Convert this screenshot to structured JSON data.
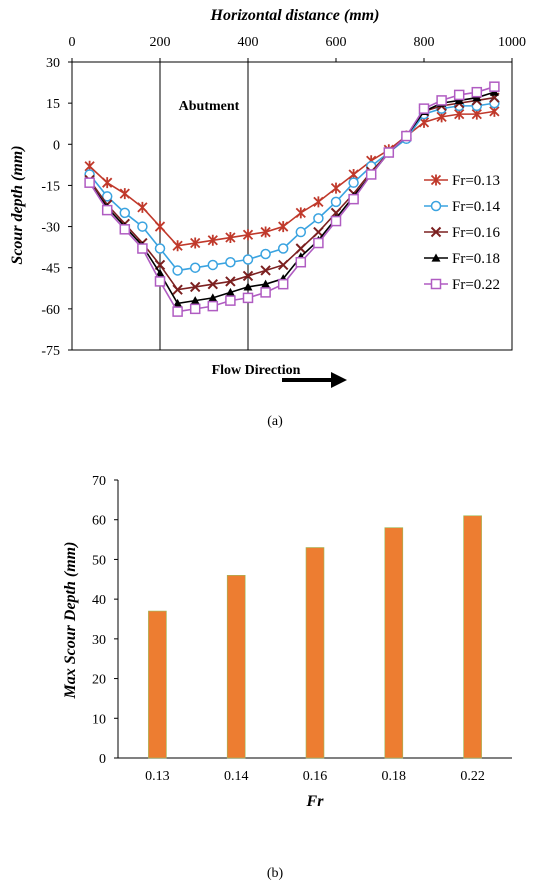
{
  "chart_data": [
    {
      "type": "line",
      "xlabel": "Horizontal distance (mm)",
      "ylabel": "Scour depth (mm)",
      "xlim": [
        0,
        1000
      ],
      "ylim": [
        -75,
        30
      ],
      "xticks": [
        "0",
        "200",
        "400",
        "600",
        "800",
        "1000"
      ],
      "yticks": [
        "30",
        "15",
        "0",
        "-15",
        "-30",
        "-45",
        "-60",
        "-75"
      ],
      "x_axis_position": "top",
      "grid": false,
      "legend_position": "right",
      "annotations": {
        "abutment_label": "Abutment",
        "abutment_x": [
          200,
          400
        ],
        "flow_label": "Flow Direction"
      },
      "x": [
        40,
        80,
        120,
        160,
        200,
        240,
        280,
        320,
        360,
        400,
        440,
        480,
        520,
        560,
        600,
        640,
        680,
        720,
        760,
        800,
        840,
        880,
        920,
        960
      ],
      "series": [
        {
          "name": "Fr=0.13",
          "marker": "star",
          "color": "#c0392b",
          "values": [
            -8,
            -14,
            -18,
            -23,
            -30,
            -37,
            -36,
            -35,
            -34,
            -33,
            -32,
            -30,
            -25,
            -21,
            -16,
            -11,
            -6,
            -2,
            3,
            8,
            10,
            11,
            11,
            12
          ]
        },
        {
          "name": "Fr=0.14",
          "marker": "circle",
          "color": "#3aa3e0",
          "values": [
            -11,
            -19,
            -25,
            -30,
            -38,
            -46,
            -45,
            -44,
            -43,
            -42,
            -40,
            -38,
            -32,
            -27,
            -21,
            -14,
            -8,
            -3,
            2,
            11,
            13,
            14,
            14,
            15
          ]
        },
        {
          "name": "Fr=0.16",
          "marker": "x",
          "color": "#7b2020",
          "values": [
            -13,
            -22,
            -29,
            -36,
            -44,
            -53,
            -52,
            -51,
            -50,
            -48,
            -46,
            -44,
            -38,
            -32,
            -25,
            -18,
            -10,
            -3,
            3,
            12,
            14,
            15,
            16,
            17
          ]
        },
        {
          "name": "Fr=0.18",
          "marker": "triangle",
          "color": "#000000",
          "values": [
            -14,
            -23,
            -30,
            -37,
            -47,
            -58,
            -57,
            -56,
            -54,
            -52,
            -51,
            -49,
            -41,
            -35,
            -27,
            -19,
            -11,
            -3,
            3,
            12,
            15,
            16,
            17,
            19
          ]
        },
        {
          "name": "Fr=0.22",
          "marker": "square",
          "color": "#b05cc2",
          "values": [
            -14,
            -24,
            -31,
            -38,
            -50,
            -61,
            -60,
            -59,
            -57,
            -56,
            -54,
            -51,
            -43,
            -36,
            -28,
            -20,
            -11,
            -3,
            3,
            13,
            16,
            18,
            19,
            21
          ]
        }
      ]
    },
    {
      "type": "bar",
      "xlabel": "Fr",
      "ylabel": "Max Scour Depth (mm)",
      "ylim": [
        0,
        70
      ],
      "yticks": [
        "0",
        "10",
        "20",
        "30",
        "40",
        "50",
        "60",
        "70"
      ],
      "categories": [
        "0.13",
        "0.14",
        "0.16",
        "0.18",
        "0.22"
      ],
      "values": [
        37,
        46,
        53,
        58,
        61
      ],
      "color": "#ed7d31",
      "grid": false
    }
  ],
  "captions": {
    "a": "(a)",
    "b": "(b)"
  }
}
